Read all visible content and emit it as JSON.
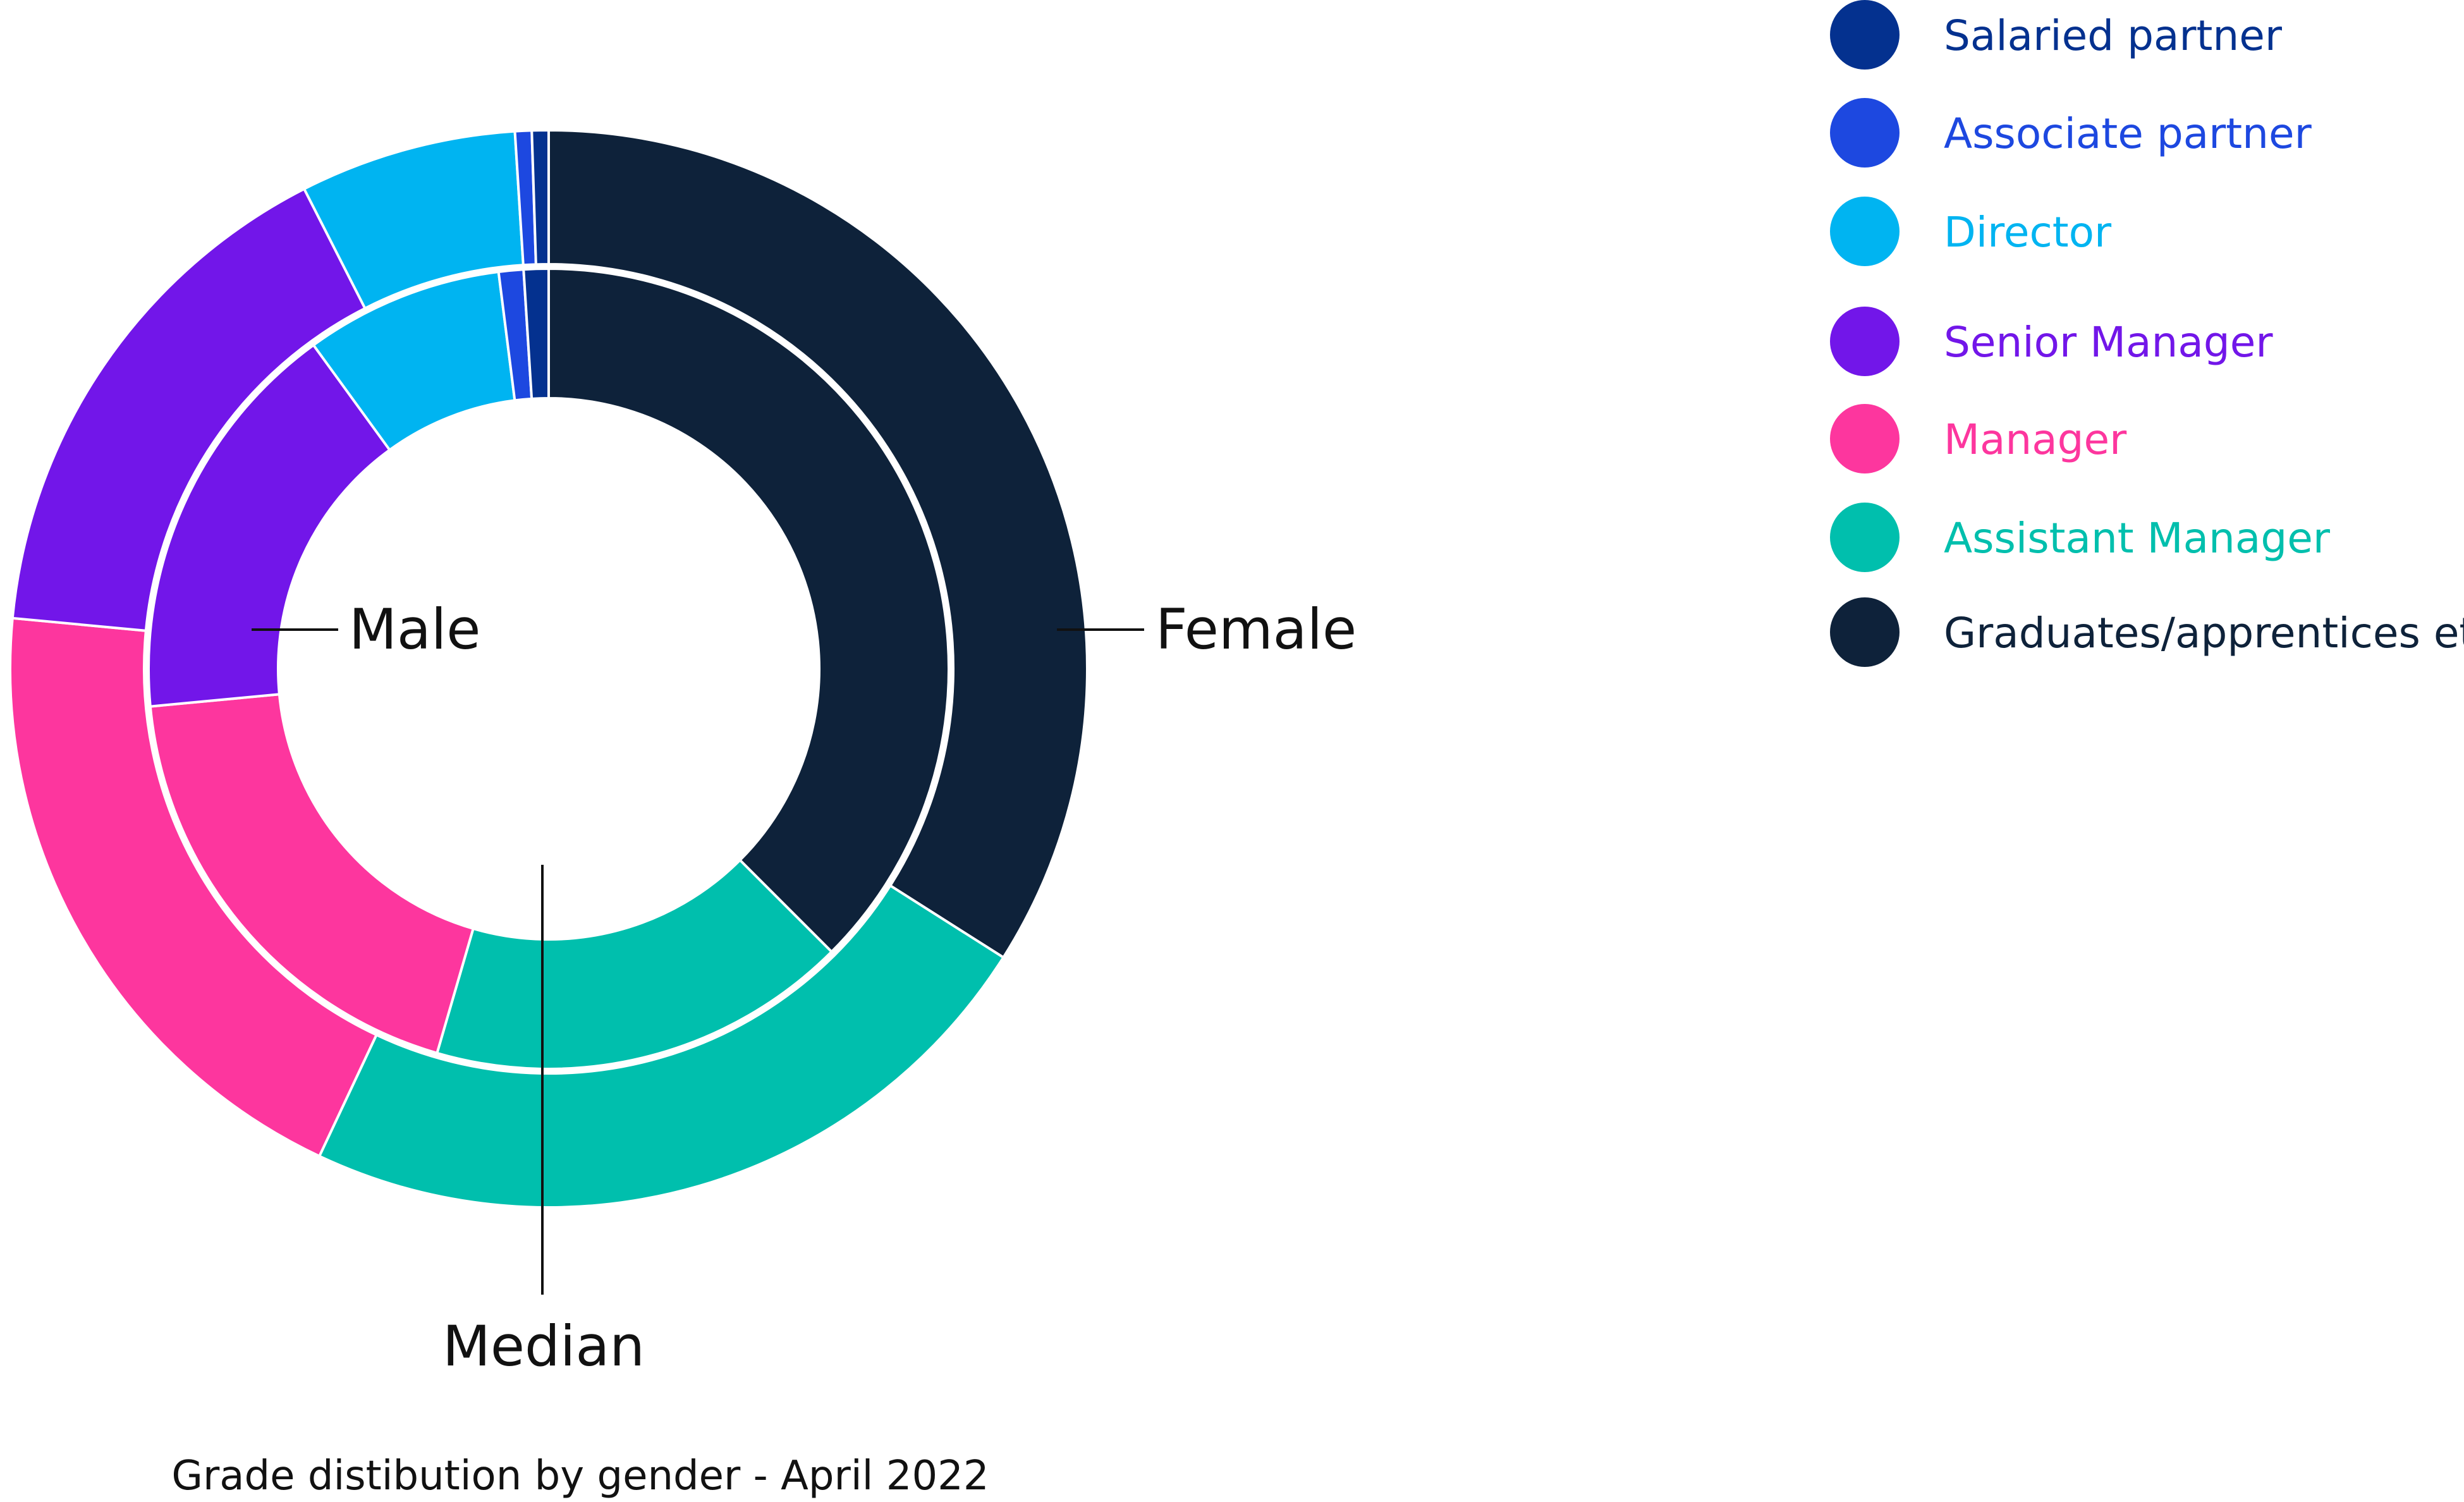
{
  "chart_data": {
    "type": "pie",
    "variant": "nested-donut",
    "title": "Grade distibution by gender - April 2022",
    "ring_labels": {
      "outer": "Female",
      "inner": "Male",
      "center": "Median"
    },
    "categories": [
      "Salaried partner",
      "Associate partner",
      "Director",
      "Senior Manager",
      "Manager",
      "Assistant Manager",
      "Graduates/apprentices etc"
    ],
    "colors": [
      "#04318f",
      "#1d48e0",
      "#00b4f1",
      "#7216e9",
      "#fd369e",
      "#00bfad",
      "#0e223a"
    ],
    "series": [
      {
        "name": "Female",
        "ring": "outer",
        "values": [
          0.5,
          0.5,
          6.5,
          16.0,
          19.5,
          23.0,
          34.0
        ]
      },
      {
        "name": "Male",
        "ring": "inner",
        "values": [
          1.0,
          1.0,
          8.0,
          16.5,
          19.0,
          17.0,
          37.5
        ]
      }
    ],
    "legend": {
      "position": "top-right"
    }
  }
}
